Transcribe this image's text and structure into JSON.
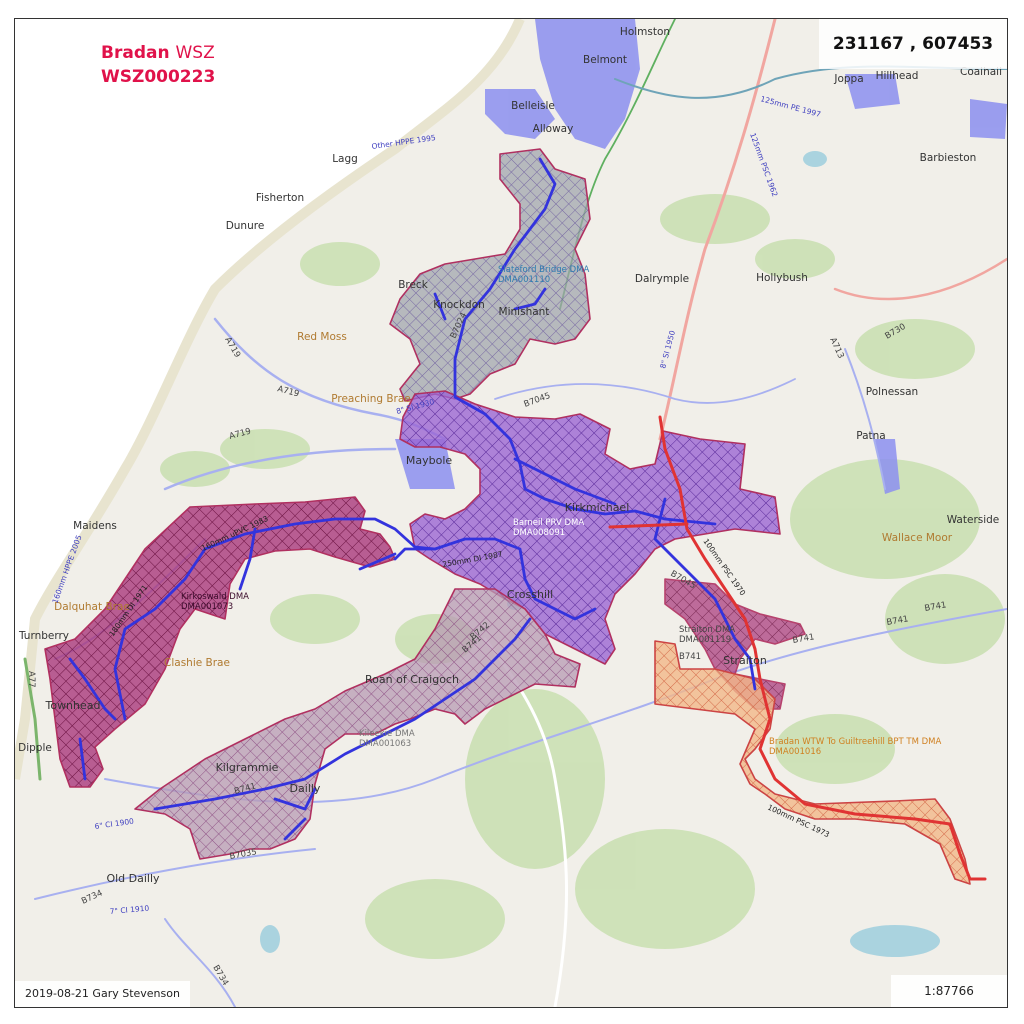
{
  "title": {
    "line1_a": "Bradan",
    "line1_b": "WSZ",
    "line2": "WSZ000223"
  },
  "coordinates": "231167 , 607453",
  "credit": "2019-08-21 Gary Stevenson",
  "scale": "1:87766",
  "colors": {
    "title": "#e0124a",
    "main_pipe": "#3333dd",
    "trunk_main": "#e03333",
    "dma_purple": "#8a50c8",
    "dma_magenta": "#a0306e",
    "dma_grey": "#9aa0a8",
    "dma_orange": "#f0a070"
  },
  "places": {
    "holmston": "Holmston",
    "belmont": "Belmont",
    "belleisle": "Belleisle",
    "alloway": "Alloway",
    "joppa": "Joppa",
    "hillhead": "Hillhead",
    "coalhall": "Coalhall",
    "barbieston": "Barbieston",
    "lagg": "Lagg",
    "fisherton": "Fisherton",
    "dunure": "Dunure",
    "breck": "Breck",
    "knockdon": "Knockdon",
    "minishant": "Minishant",
    "dalrymple": "Dalrymple",
    "hollybush": "Hollybush",
    "red_moss": "Red Moss",
    "preaching_brae": "Preaching Brae",
    "polnessan": "Polnessan",
    "patna": "Patna",
    "maybole": "Maybole",
    "kirkmichael": "Kirkmichael",
    "waterside": "Waterside",
    "wallace_moor": "Wallace Moor",
    "maidens": "Maidens",
    "dalquhat_brae": "Dalquhat Brae",
    "turnberry": "Turnberry",
    "clashie_brae": "Clashie Brae",
    "crosshill": "Crosshill",
    "straiton": "Straiton",
    "townhead": "Townhead",
    "roan_of_craigoch": "Roan of Craigoch",
    "dipple": "Dipple",
    "kilgrammie": "Kilgrammie",
    "dailly": "Dailly",
    "old_dailly": "Old Dailly"
  },
  "dmas": {
    "slateford": {
      "name": "Slateford Bridge DMA",
      "code": "DMA001110"
    },
    "barneil": {
      "name": "Barneil PRV DMA",
      "code": "DMA008091"
    },
    "kirkoswald": {
      "name": "Kirkoswald DMA",
      "code": "DMA001073"
    },
    "straiton": {
      "name": "Straiton DMA",
      "code": "DMA001119"
    },
    "kileekie": {
      "name": "Kileekie DMA",
      "code": "DMA001063"
    },
    "bradan_wtw": {
      "name": "Bradan WTW To Guiltreehill BPT TM DMA",
      "code": "DMA001016"
    }
  },
  "roads": {
    "a719_1": "A719",
    "a719_2": "A719",
    "a719_3": "A719",
    "a77": "A77",
    "b7024": "B7024",
    "b7045_1": "B7045",
    "b7045_2": "B7045",
    "b741_1": "B741",
    "b741_2": "B741",
    "b741_3": "B741",
    "b741_4": "B741",
    "b741_5": "B741",
    "b741_6": "B741",
    "b7035": "B7035",
    "b734_1": "B734",
    "b734_2": "B734",
    "b730": "B730",
    "a713": "A713",
    "b742": "B742"
  },
  "pipes": {
    "p1": "250mm DI 1987",
    "p2": "160mm uPVC 1983",
    "p3": "180mm DI 1971",
    "p4": "100mm PSC 1970",
    "p5": "100mm PSC 1973",
    "p6": "125mm PE 1997",
    "p7": "Other HPPE 1995",
    "p8": "8\" SI 1930",
    "p9": "6\" CI 1900",
    "p10": "7\" CI 1910",
    "p11": "160mm HPPE 2005",
    "p12": "125mm PSC 1962",
    "p13": "8\" SI 1950"
  }
}
